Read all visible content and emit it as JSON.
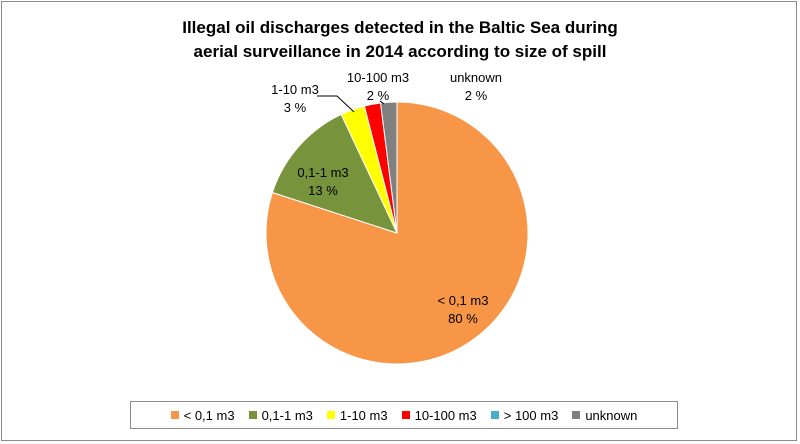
{
  "chart_data": {
    "type": "pie",
    "title": "Illegal oil discharges detected in the Baltic Sea during aerial surveillance in 2014 according to size of spill",
    "title_lines": [
      "Illegal oil discharges detected in the Baltic Sea during",
      "aerial surveillance in 2014 according to size of spill"
    ],
    "slices": [
      {
        "label": "< 0,1 m3",
        "value": 80,
        "value_label": "80 %",
        "color": "#F79646"
      },
      {
        "label": "0,1-1 m3",
        "value": 13,
        "value_label": "13 %",
        "color": "#77933C"
      },
      {
        "label": "1-10 m3",
        "value": 3,
        "value_label": "3 %",
        "color": "#FFFF00"
      },
      {
        "label": "10-100 m3",
        "value": 2,
        "value_label": "2 %",
        "color": "#FF0000"
      },
      {
        "label": "> 100 m3",
        "value": 0,
        "value_label": "",
        "color": "#4BACC6"
      },
      {
        "label": "unknown",
        "value": 2,
        "value_label": "2 %",
        "color": "#808080"
      }
    ],
    "legend": {
      "position": "bottom",
      "entries": [
        "< 0,1 m3",
        "0,1-1 m3",
        "1-10 m3",
        "10-100 m3",
        "> 100 m3",
        "unknown"
      ]
    }
  }
}
